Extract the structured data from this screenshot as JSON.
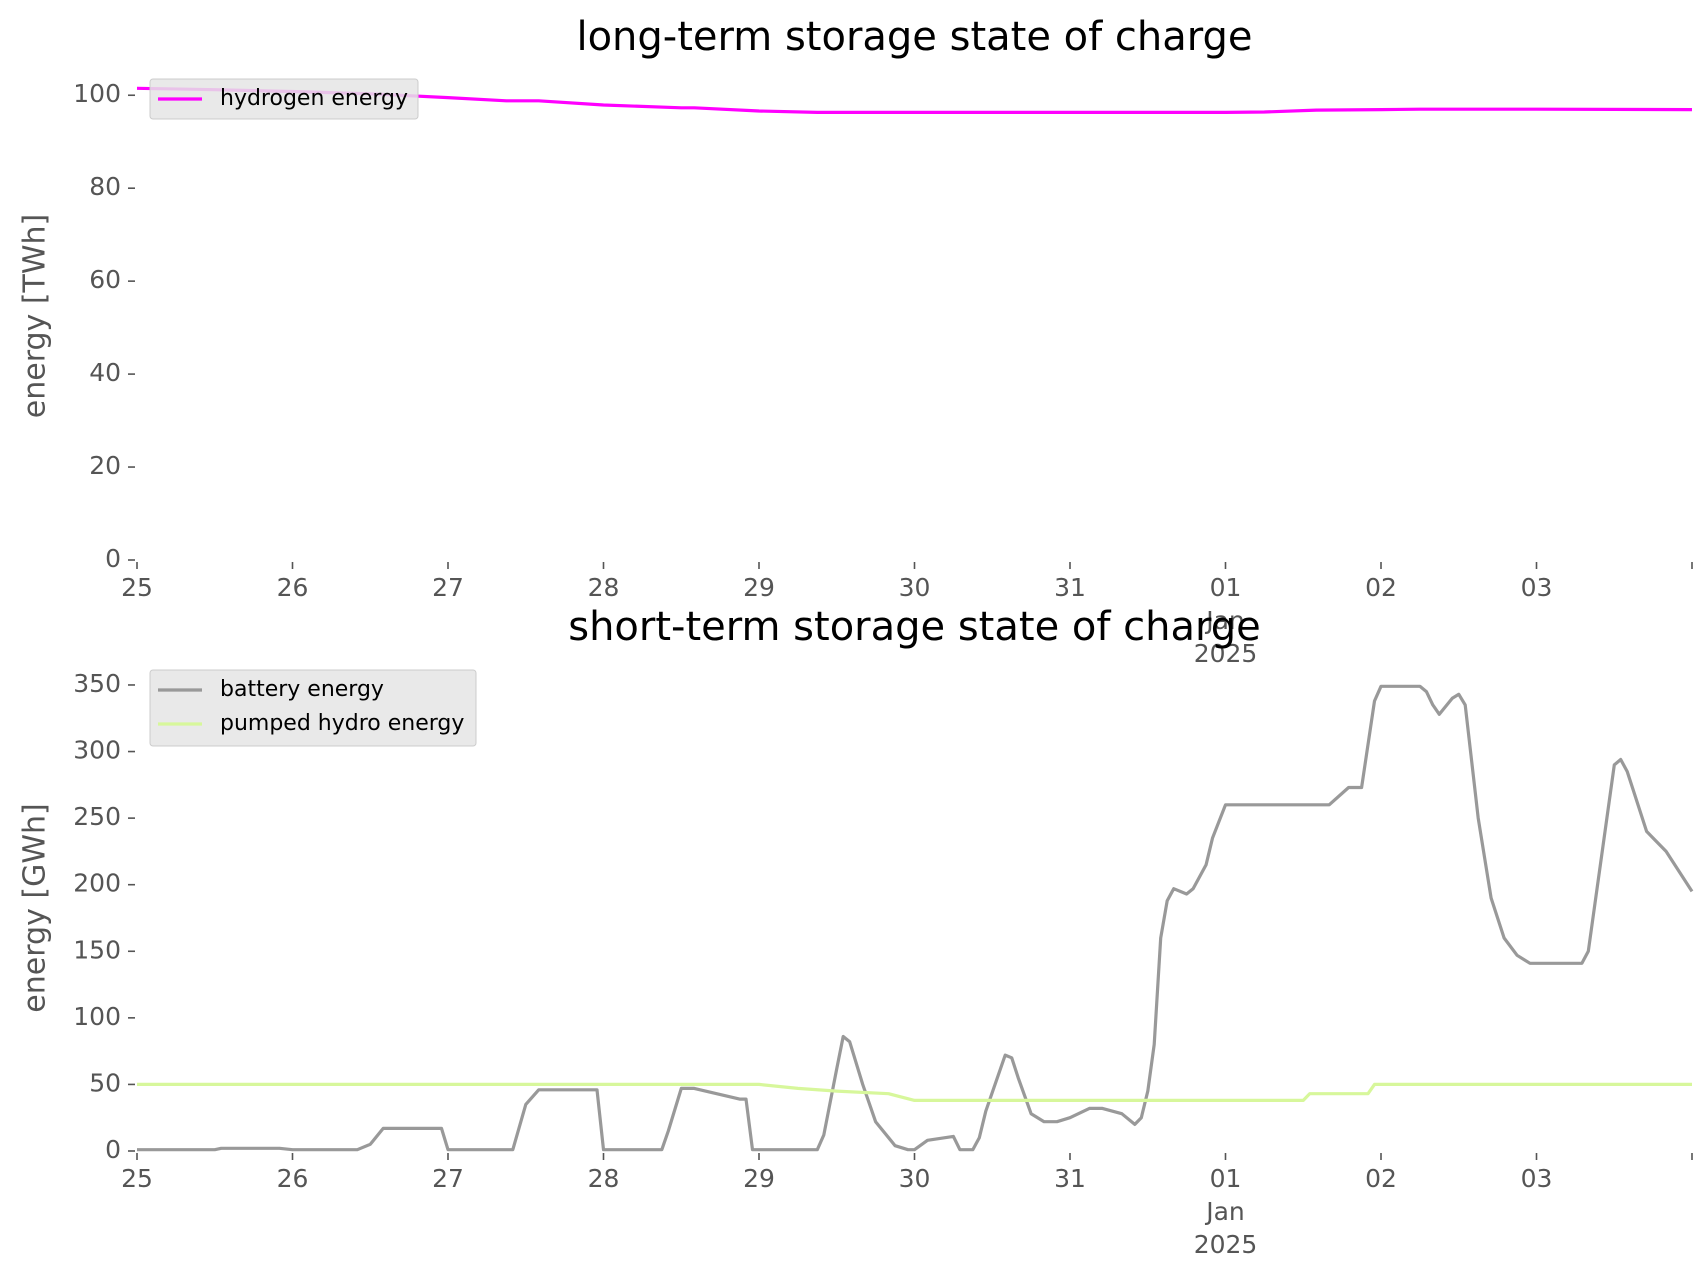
{
  "chart_data": [
    {
      "type": "line",
      "title": "long-term storage state of charge",
      "xlabel": "",
      "ylabel": "energy [TWh]",
      "ylim": [
        0,
        105
      ],
      "yticks": [
        0,
        20,
        40,
        60,
        80,
        100
      ],
      "x_range": [
        "2024-12-25",
        "2025-01-04"
      ],
      "x_ticks": [
        {
          "x": "2024-12-25",
          "label": "25"
        },
        {
          "x": "2024-12-26",
          "label": "26"
        },
        {
          "x": "2024-12-27",
          "label": "27"
        },
        {
          "x": "2024-12-28",
          "label": "28"
        },
        {
          "x": "2024-12-29",
          "label": "29"
        },
        {
          "x": "2024-12-30",
          "label": "30"
        },
        {
          "x": "2024-12-31",
          "label": "31"
        },
        {
          "x": "2025-01-01",
          "label": "01",
          "label2": "Jan",
          "label3": "2025"
        },
        {
          "x": "2025-01-02",
          "label": "02"
        },
        {
          "x": "2025-01-03",
          "label": "03"
        },
        {
          "x": "2025-01-04",
          "label": ""
        }
      ],
      "grid": false,
      "legend": "top-left",
      "series": [
        {
          "name": "hydrogen energy",
          "color": "#ff00ff",
          "x": [
            "2024-12-25 00:00",
            "2024-12-25 12:00",
            "2024-12-26 00:00",
            "2024-12-26 12:00",
            "2024-12-27 00:00",
            "2024-12-27 09:00",
            "2024-12-27 14:00",
            "2024-12-28 00:00",
            "2024-12-28 12:00",
            "2024-12-28 14:00",
            "2024-12-29 00:00",
            "2024-12-29 09:00",
            "2024-12-29 12:00",
            "2024-12-30 00:00",
            "2024-12-31 00:00",
            "2025-01-01 00:00",
            "2025-01-01 06:00",
            "2025-01-01 14:00",
            "2025-01-02 00:00",
            "2025-01-02 06:00",
            "2025-01-03 00:00",
            "2025-01-04 00:00"
          ],
          "y": [
            101.5,
            101.2,
            100.8,
            100.3,
            99.5,
            98.8,
            98.8,
            97.9,
            97.3,
            97.3,
            96.6,
            96.3,
            96.3,
            96.3,
            96.3,
            96.3,
            96.4,
            96.8,
            96.9,
            97.0,
            97.0,
            96.9
          ]
        }
      ]
    },
    {
      "type": "line",
      "title": "short-term storage state of charge",
      "xlabel": "",
      "ylabel": "energy [GWh]",
      "ylim": [
        0,
        365
      ],
      "yticks": [
        0,
        50,
        100,
        150,
        200,
        250,
        300,
        350
      ],
      "x_range": [
        "2024-12-25",
        "2025-01-04"
      ],
      "x_ticks": [
        {
          "x": "2024-12-25",
          "label": "25"
        },
        {
          "x": "2024-12-26",
          "label": "26"
        },
        {
          "x": "2024-12-27",
          "label": "27"
        },
        {
          "x": "2024-12-28",
          "label": "28"
        },
        {
          "x": "2024-12-29",
          "label": "29"
        },
        {
          "x": "2024-12-30",
          "label": "30"
        },
        {
          "x": "2024-12-31",
          "label": "31"
        },
        {
          "x": "2025-01-01",
          "label": "01",
          "label2": "Jan",
          "label3": "2025"
        },
        {
          "x": "2025-01-02",
          "label": "02"
        },
        {
          "x": "2025-01-03",
          "label": "03"
        },
        {
          "x": "2025-01-04",
          "label": ""
        }
      ],
      "grid": false,
      "legend": "top-left",
      "series": [
        {
          "name": "battery energy",
          "color": "#999999",
          "x": [
            "2024-12-25 00:00",
            "2024-12-25 12:00",
            "2024-12-25 13:00",
            "2024-12-25 22:00",
            "2024-12-26 00:00",
            "2024-12-26 10:00",
            "2024-12-26 12:00",
            "2024-12-26 14:00",
            "2024-12-26 22:00",
            "2024-12-26 23:00",
            "2024-12-27 00:00",
            "2024-12-27 10:00",
            "2024-12-27 12:00",
            "2024-12-27 14:00",
            "2024-12-27 23:00",
            "2024-12-28 00:00",
            "2024-12-28 09:00",
            "2024-12-28 10:00",
            "2024-12-28 12:00",
            "2024-12-28 14:00",
            "2024-12-28 21:00",
            "2024-12-28 22:00",
            "2024-12-28 23:00",
            "2024-12-29 00:00",
            "2024-12-29 09:00",
            "2024-12-29 10:00",
            "2024-12-29 12:00",
            "2024-12-29 13:00",
            "2024-12-29 14:00",
            "2024-12-29 16:00",
            "2024-12-29 18:00",
            "2024-12-29 21:00",
            "2024-12-29 23:00",
            "2024-12-30 00:00",
            "2024-12-30 02:00",
            "2024-12-30 06:00",
            "2024-12-30 07:00",
            "2024-12-30 09:00",
            "2024-12-30 10:00",
            "2024-12-30 11:00",
            "2024-12-30 14:00",
            "2024-12-30 15:00",
            "2024-12-30 16:00",
            "2024-12-30 18:00",
            "2024-12-30 20:00",
            "2024-12-30 22:00",
            "2024-12-31 00:00",
            "2024-12-31 03:00",
            "2024-12-31 05:00",
            "2024-12-31 08:00",
            "2024-12-31 10:00",
            "2024-12-31 11:00",
            "2024-12-31 12:00",
            "2024-12-31 13:00",
            "2024-12-31 14:00",
            "2024-12-31 15:00",
            "2024-12-31 16:00",
            "2024-12-31 18:00",
            "2024-12-31 19:00",
            "2024-12-31 21:00",
            "2024-12-31 22:00",
            "2025-01-01 00:00",
            "2025-01-01 14:00",
            "2025-01-01 16:00",
            "2025-01-01 19:00",
            "2025-01-01 21:00",
            "2025-01-01 23:00",
            "2025-01-02 00:00",
            "2025-01-02 06:00",
            "2025-01-02 07:00",
            "2025-01-02 08:00",
            "2025-01-02 09:00",
            "2025-01-02 11:00",
            "2025-01-02 12:00",
            "2025-01-02 13:00",
            "2025-01-02 15:00",
            "2025-01-02 17:00",
            "2025-01-02 19:00",
            "2025-01-02 21:00",
            "2025-01-02 23:00",
            "2025-01-03 00:00",
            "2025-01-03 02:00",
            "2025-01-03 05:00",
            "2025-01-03 07:00",
            "2025-01-03 08:00",
            "2025-01-03 10:00",
            "2025-01-03 12:00",
            "2025-01-03 13:00",
            "2025-01-03 14:00",
            "2025-01-03 15:00",
            "2025-01-03 17:00",
            "2025-01-03 20:00",
            "2025-01-04 00:00"
          ],
          "y": [
            1,
            1,
            2,
            2,
            1,
            1,
            5,
            17,
            17,
            17,
            1,
            1,
            35,
            46,
            46,
            1,
            1,
            15,
            47,
            47,
            39,
            39,
            1,
            1,
            1,
            12,
            62,
            86,
            82,
            50,
            22,
            4,
            1,
            1,
            8,
            11,
            1,
            1,
            10,
            30,
            72,
            70,
            55,
            28,
            22,
            22,
            25,
            32,
            32,
            28,
            20,
            25,
            45,
            80,
            160,
            188,
            197,
            193,
            197,
            215,
            235,
            260,
            260,
            260,
            273,
            273,
            338,
            349,
            349,
            345,
            335,
            328,
            340,
            343,
            335,
            250,
            190,
            160,
            147,
            141,
            141,
            141,
            141,
            141,
            150,
            220,
            290,
            294,
            285,
            270,
            240,
            225,
            195
          ]
        },
        {
          "name": "pumped hydro energy",
          "color": "#d7f79b",
          "x": [
            "2024-12-25 00:00",
            "2024-12-29 00:00",
            "2024-12-29 06:00",
            "2024-12-29 12:00",
            "2024-12-29 20:00",
            "2024-12-30 00:00",
            "2025-01-01 00:00",
            "2025-01-01 12:00",
            "2025-01-01 13:00",
            "2025-01-01 22:00",
            "2025-01-01 23:00",
            "2025-01-04 00:00"
          ],
          "y": [
            50,
            50,
            47,
            45,
            43,
            38,
            38,
            38,
            43,
            43,
            50,
            50
          ]
        }
      ]
    }
  ]
}
